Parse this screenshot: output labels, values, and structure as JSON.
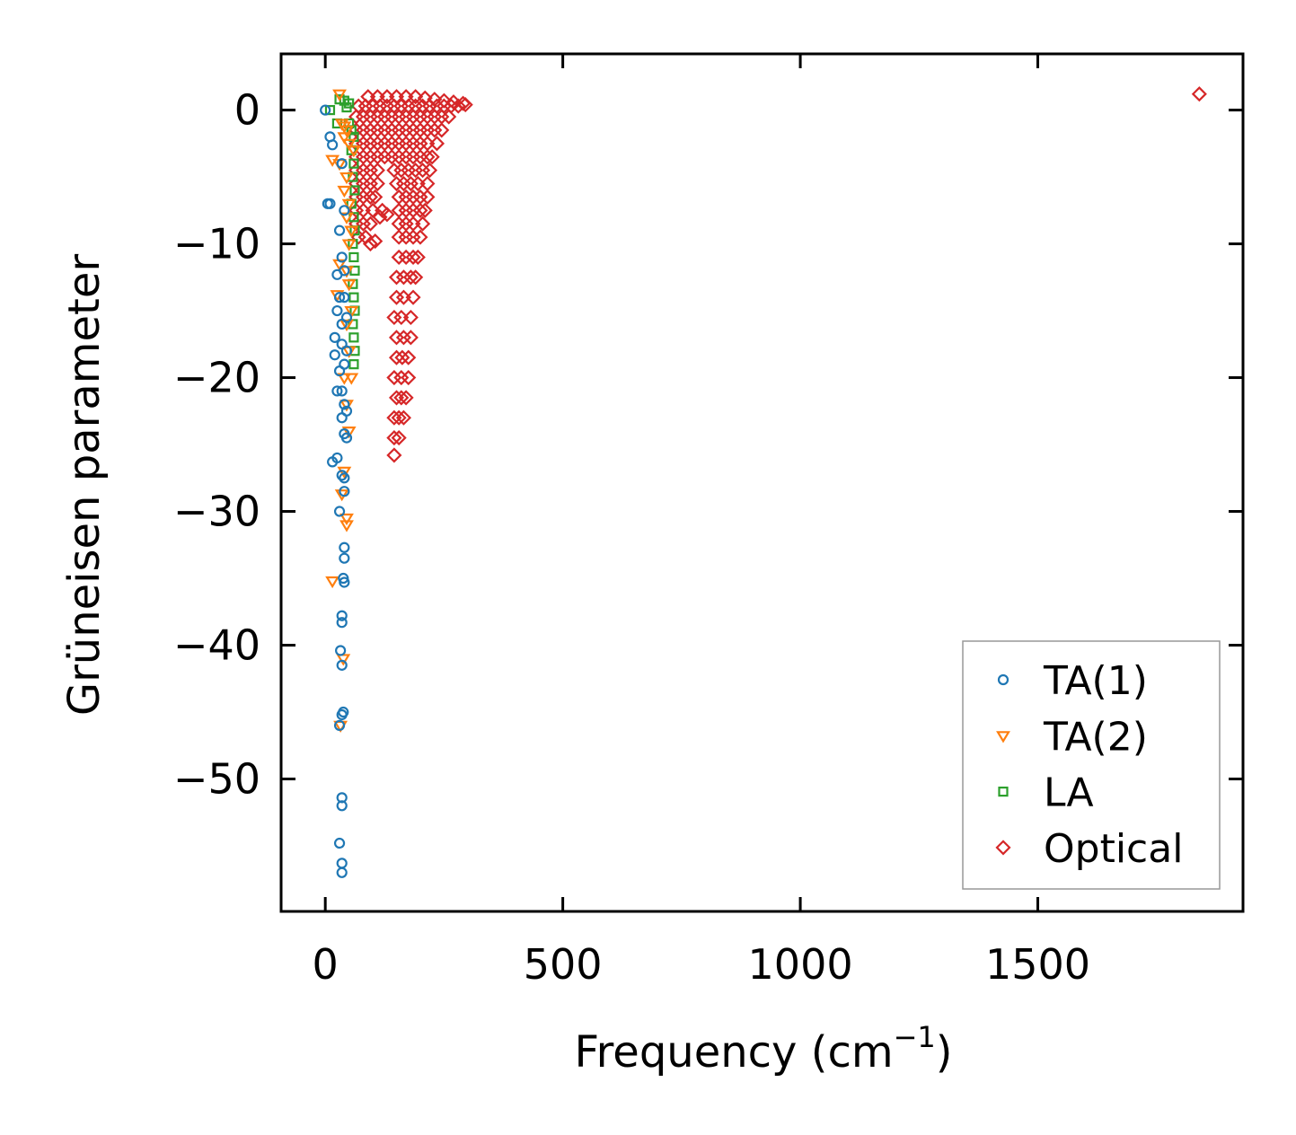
{
  "chart_data": {
    "type": "scatter",
    "title": "",
    "xlabel": "Frequency (cm",
    "xlabel_sup": "−1",
    "xlabel_close": ")",
    "ylabel": "Grüneisen parameter",
    "xlim": [
      -93,
      1932
    ],
    "ylim": [
      -59.9,
      4.2
    ],
    "xticks": [
      0,
      500,
      1000,
      1500
    ],
    "xtick_labels": [
      "0",
      "500",
      "1000",
      "1500"
    ],
    "yticks": [
      0,
      -10,
      -20,
      -30,
      -40,
      -50
    ],
    "ytick_labels": [
      "0",
      "−10",
      "−20",
      "−30",
      "−40",
      "−50"
    ],
    "grid": false,
    "legend_position": "bottom-right",
    "series": [
      {
        "name": "TA(1)",
        "marker": "circle",
        "color": "#1f77b4",
        "points": [
          [
            0,
            0
          ],
          [
            10,
            -2
          ],
          [
            15,
            -2.6
          ],
          [
            5,
            -7
          ],
          [
            10,
            -7
          ],
          [
            30,
            -9
          ],
          [
            35,
            -4
          ],
          [
            40,
            -7.5
          ],
          [
            35,
            -11
          ],
          [
            40,
            -12
          ],
          [
            25,
            -12.3
          ],
          [
            30,
            -14
          ],
          [
            25,
            -15
          ],
          [
            40,
            -14
          ],
          [
            35,
            -16
          ],
          [
            45,
            -15.5
          ],
          [
            20,
            -17
          ],
          [
            35,
            -17.5
          ],
          [
            45,
            -18
          ],
          [
            20,
            -18.3
          ],
          [
            30,
            -19.5
          ],
          [
            40,
            -19
          ],
          [
            25,
            -21
          ],
          [
            35,
            -21
          ],
          [
            40,
            -22
          ],
          [
            45,
            -22.5
          ],
          [
            35,
            -23
          ],
          [
            40,
            -24.2
          ],
          [
            45,
            -24.5
          ],
          [
            15,
            -26.3
          ],
          [
            25,
            -26
          ],
          [
            35,
            -27.3
          ],
          [
            40,
            -27.5
          ],
          [
            40,
            -28.5
          ],
          [
            30,
            -30
          ],
          [
            40,
            -32.7
          ],
          [
            40,
            -33.5
          ],
          [
            38,
            -35
          ],
          [
            40,
            -35.3
          ],
          [
            35,
            -37.8
          ],
          [
            35,
            -38.3
          ],
          [
            32,
            -40.4
          ],
          [
            35,
            -41.5
          ],
          [
            35,
            -45.2
          ],
          [
            38,
            -45
          ],
          [
            30,
            -46
          ],
          [
            35,
            -51.4
          ],
          [
            35,
            -52
          ],
          [
            30,
            -54.8
          ],
          [
            35,
            -56.3
          ],
          [
            35,
            -57
          ]
        ]
      },
      {
        "name": "TA(2)",
        "marker": "triangle-down",
        "color": "#ff7f0e",
        "points": [
          [
            30,
            1.2
          ],
          [
            35,
            -1
          ],
          [
            45,
            -1.5
          ],
          [
            40,
            -2
          ],
          [
            50,
            -2.5
          ],
          [
            15,
            -3.7
          ],
          [
            30,
            -4
          ],
          [
            45,
            -5
          ],
          [
            40,
            -6
          ],
          [
            50,
            -7
          ],
          [
            45,
            -8
          ],
          [
            55,
            -9
          ],
          [
            50,
            -10
          ],
          [
            30,
            -11.5
          ],
          [
            45,
            -12
          ],
          [
            50,
            -13
          ],
          [
            25,
            -13.8
          ],
          [
            55,
            -15
          ],
          [
            45,
            -16
          ],
          [
            50,
            -18
          ],
          [
            40,
            -20
          ],
          [
            55,
            -20
          ],
          [
            45,
            -22
          ],
          [
            50,
            -24
          ],
          [
            40,
            -27
          ],
          [
            35,
            -28.7
          ],
          [
            45,
            -30.5
          ],
          [
            45,
            -31
          ],
          [
            15,
            -35.2
          ],
          [
            38,
            -41
          ],
          [
            32,
            -46
          ],
          [
            40,
            -1.2
          ],
          [
            60,
            -3
          ]
        ]
      },
      {
        "name": "LA",
        "marker": "square",
        "color": "#2ca02c",
        "points": [
          [
            30,
            0.8
          ],
          [
            40,
            0.7
          ],
          [
            45,
            0.2
          ],
          [
            50,
            0.5
          ],
          [
            25,
            -1
          ],
          [
            55,
            -1.5
          ],
          [
            60,
            -2
          ],
          [
            55,
            -3
          ],
          [
            60,
            -4
          ],
          [
            58,
            -5
          ],
          [
            62,
            -6
          ],
          [
            55,
            -7
          ],
          [
            60,
            -8
          ],
          [
            62,
            -9
          ],
          [
            58,
            -10
          ],
          [
            60,
            -11
          ],
          [
            62,
            -12
          ],
          [
            58,
            -13
          ],
          [
            60,
            -14
          ],
          [
            62,
            -15
          ],
          [
            58,
            -16
          ],
          [
            60,
            -17
          ],
          [
            62,
            -18
          ],
          [
            60,
            -19
          ],
          [
            10,
            0
          ],
          [
            50,
            -1
          ]
        ]
      },
      {
        "name": "Optical",
        "marker": "diamond",
        "color": "#d62728",
        "points": [
          [
            90,
            1
          ],
          [
            110,
            1
          ],
          [
            130,
            1
          ],
          [
            150,
            1
          ],
          [
            170,
            1
          ],
          [
            190,
            1
          ],
          [
            210,
            0.9
          ],
          [
            230,
            0.8
          ],
          [
            250,
            0.7
          ],
          [
            270,
            0.6
          ],
          [
            290,
            0.5
          ],
          [
            70,
            0.3
          ],
          [
            85,
            0.3
          ],
          [
            100,
            0.3
          ],
          [
            115,
            0.3
          ],
          [
            130,
            0.3
          ],
          [
            145,
            0.3
          ],
          [
            160,
            0.3
          ],
          [
            175,
            0.3
          ],
          [
            190,
            0.3
          ],
          [
            205,
            0.3
          ],
          [
            220,
            0.3
          ],
          [
            235,
            0.3
          ],
          [
            250,
            0.3
          ],
          [
            265,
            0.3
          ],
          [
            280,
            0.3
          ],
          [
            295,
            0.4
          ],
          [
            65,
            -0.5
          ],
          [
            80,
            -0.5
          ],
          [
            95,
            -0.5
          ],
          [
            110,
            -0.5
          ],
          [
            125,
            -0.5
          ],
          [
            140,
            -0.5
          ],
          [
            155,
            -0.5
          ],
          [
            170,
            -0.5
          ],
          [
            185,
            -0.5
          ],
          [
            200,
            -0.5
          ],
          [
            215,
            -0.5
          ],
          [
            230,
            -0.5
          ],
          [
            245,
            -0.5
          ],
          [
            260,
            -0.5
          ],
          [
            65,
            -1.5
          ],
          [
            80,
            -1.5
          ],
          [
            95,
            -1.5
          ],
          [
            110,
            -1.5
          ],
          [
            125,
            -1.5
          ],
          [
            140,
            -1.5
          ],
          [
            155,
            -1.5
          ],
          [
            170,
            -1.5
          ],
          [
            185,
            -1.5
          ],
          [
            200,
            -1.5
          ],
          [
            215,
            -1.5
          ],
          [
            230,
            -1.5
          ],
          [
            245,
            -1.5
          ],
          [
            65,
            -2.5
          ],
          [
            80,
            -2.5
          ],
          [
            95,
            -2.5
          ],
          [
            110,
            -2.5
          ],
          [
            125,
            -2.5
          ],
          [
            140,
            -2.5
          ],
          [
            155,
            -2.5
          ],
          [
            170,
            -2.5
          ],
          [
            185,
            -2.5
          ],
          [
            200,
            -2.5
          ],
          [
            215,
            -2.5
          ],
          [
            235,
            -2.5
          ],
          [
            65,
            -3.5
          ],
          [
            80,
            -3.5
          ],
          [
            95,
            -3.5
          ],
          [
            110,
            -3.5
          ],
          [
            125,
            -3.5
          ],
          [
            140,
            -3.5
          ],
          [
            155,
            -3.5
          ],
          [
            170,
            -3.5
          ],
          [
            185,
            -3.5
          ],
          [
            200,
            -3.5
          ],
          [
            215,
            -3.5
          ],
          [
            225,
            -3.5
          ],
          [
            65,
            -4.5
          ],
          [
            80,
            -4.5
          ],
          [
            95,
            -4.5
          ],
          [
            110,
            -4.5
          ],
          [
            145,
            -4.5
          ],
          [
            160,
            -4.5
          ],
          [
            175,
            -4.5
          ],
          [
            190,
            -4.5
          ],
          [
            205,
            -4.5
          ],
          [
            220,
            -4.5
          ],
          [
            65,
            -5.5
          ],
          [
            80,
            -5.5
          ],
          [
            95,
            -5.5
          ],
          [
            110,
            -5.5
          ],
          [
            150,
            -5.5
          ],
          [
            165,
            -5.5
          ],
          [
            180,
            -5.5
          ],
          [
            195,
            -5.5
          ],
          [
            215,
            -5.5
          ],
          [
            65,
            -6.5
          ],
          [
            80,
            -6.5
          ],
          [
            95,
            -6.5
          ],
          [
            105,
            -6.5
          ],
          [
            155,
            -6.5
          ],
          [
            170,
            -6.5
          ],
          [
            185,
            -6.5
          ],
          [
            200,
            -6.5
          ],
          [
            215,
            -6.5
          ],
          [
            65,
            -7.5
          ],
          [
            80,
            -7.5
          ],
          [
            100,
            -7.5
          ],
          [
            155,
            -7.5
          ],
          [
            170,
            -7.5
          ],
          [
            185,
            -7.5
          ],
          [
            200,
            -7.5
          ],
          [
            210,
            -7.5
          ],
          [
            65,
            -8.5
          ],
          [
            80,
            -8.5
          ],
          [
            95,
            -8.5
          ],
          [
            155,
            -8.5
          ],
          [
            170,
            -8.5
          ],
          [
            185,
            -8.5
          ],
          [
            205,
            -8.5
          ],
          [
            70,
            -9.5
          ],
          [
            85,
            -9.5
          ],
          [
            155,
            -9.5
          ],
          [
            170,
            -9.5
          ],
          [
            185,
            -9.5
          ],
          [
            200,
            -9.5
          ],
          [
            155,
            -11
          ],
          [
            170,
            -11
          ],
          [
            185,
            -11
          ],
          [
            195,
            -11
          ],
          [
            150,
            -12.5
          ],
          [
            165,
            -12.5
          ],
          [
            180,
            -12.5
          ],
          [
            190,
            -12.5
          ],
          [
            150,
            -14
          ],
          [
            165,
            -14
          ],
          [
            185,
            -14
          ],
          [
            145,
            -15.5
          ],
          [
            160,
            -15.5
          ],
          [
            180,
            -15.5
          ],
          [
            150,
            -17
          ],
          [
            165,
            -17
          ],
          [
            180,
            -17
          ],
          [
            150,
            -18.5
          ],
          [
            162,
            -18.5
          ],
          [
            175,
            -18.5
          ],
          [
            145,
            -20
          ],
          [
            160,
            -20
          ],
          [
            175,
            -20
          ],
          [
            150,
            -21.5
          ],
          [
            160,
            -21.5
          ],
          [
            170,
            -21.5
          ],
          [
            145,
            -23
          ],
          [
            155,
            -23
          ],
          [
            165,
            -23
          ],
          [
            145,
            -24.5
          ],
          [
            155,
            -24.5
          ],
          [
            145,
            -25.8
          ],
          [
            115,
            -8
          ],
          [
            120,
            -7.5
          ],
          [
            130,
            -7.8
          ],
          [
            95,
            -10
          ],
          [
            105,
            -9.8
          ],
          [
            1840,
            1.2
          ]
        ]
      }
    ]
  }
}
